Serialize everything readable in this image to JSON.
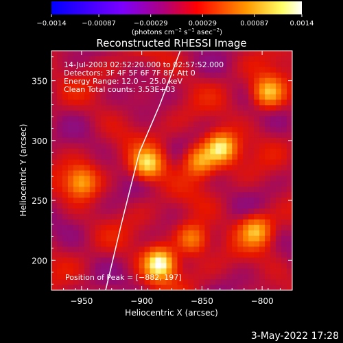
{
  "chart_data": {
    "type": "heatmap",
    "title": "Reconstructed RHESSI Image",
    "xlabel": "Heliocentric X (arcsec)",
    "ylabel": "Heliocentric Y (arcsec)",
    "xlim": [
      -975,
      -775
    ],
    "ylim": [
      175,
      375
    ],
    "xticks": [
      -950,
      -900,
      -850,
      -800
    ],
    "xtick_labels": [
      "−950",
      "−900",
      "−850",
      "−800"
    ],
    "yticks": [
      200,
      250,
      300,
      350
    ],
    "ytick_labels": [
      "200",
      "250",
      "300",
      "350"
    ],
    "colorbar": {
      "range": [
        -0.0014,
        0.0014
      ],
      "ticks": [
        -0.0014,
        -0.00087,
        -0.00029,
        0.00029,
        0.00087,
        0.0014
      ],
      "tick_labels": [
        "−0.0014",
        "−0.00087",
        "−0.00029",
        "0.00029",
        "0.00087",
        "0.0014"
      ],
      "units_main": "(photons cm",
      "units_exp1": "−2",
      "units_mid1": " s",
      "units_exp2": "−1",
      "units_mid2": " asec",
      "units_exp3": "−2",
      "units_end": ")",
      "colors": [
        "#0000ff",
        "#7a00ff",
        "#ff0000",
        "#ff9900",
        "#ffff66",
        "#ffffff"
      ]
    },
    "annotations": [
      "14-Jul-2003 02:52:20.000 to 02:57:52.000",
      "Detectors: 3F 4F 5F 6F 7F 8F, Att 0",
      "Energy Range: 12.0 − 25.0 keV",
      "Clean     Total counts: 3.53E+03"
    ],
    "peak_label": "Position of Peak = [−882, 197]",
    "limb_arc": [
      [
        -930,
        175
      ],
      [
        -917,
        230
      ],
      [
        -902,
        290
      ],
      [
        -885,
        330
      ],
      [
        -868,
        375
      ]
    ],
    "bright_sources": [
      {
        "x": -885,
        "y": 197,
        "value": 0.0014
      },
      {
        "x": -895,
        "y": 280,
        "value": 0.0011
      },
      {
        "x": -852,
        "y": 283,
        "value": 0.0009
      },
      {
        "x": -834,
        "y": 294,
        "value": 0.0012
      },
      {
        "x": -795,
        "y": 340,
        "value": 0.001
      },
      {
        "x": -950,
        "y": 265,
        "value": 0.0008
      },
      {
        "x": -858,
        "y": 218,
        "value": 0.0008
      },
      {
        "x": -805,
        "y": 225,
        "value": 0.0009
      }
    ]
  },
  "footer": {
    "date": "3-May-2022 17:28"
  }
}
